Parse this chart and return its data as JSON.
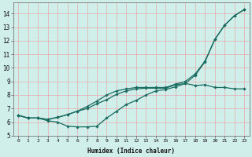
{
  "xlabel": "Humidex (Indice chaleur)",
  "bg_color": "#d0eeea",
  "line_color": "#1a6b60",
  "grid_color": "#e8aaaa",
  "xlim": [
    -0.5,
    23.5
  ],
  "ylim": [
    5.0,
    14.8
  ],
  "xticks": [
    0,
    1,
    2,
    3,
    4,
    5,
    6,
    7,
    8,
    9,
    10,
    11,
    12,
    13,
    14,
    15,
    16,
    17,
    18,
    19,
    20,
    21,
    22,
    23
  ],
  "yticks": [
    5,
    6,
    7,
    8,
    9,
    10,
    11,
    12,
    13,
    14
  ],
  "line1_y": [
    6.5,
    6.3,
    6.3,
    6.1,
    6.0,
    5.7,
    5.65,
    5.65,
    5.7,
    6.3,
    6.8,
    7.3,
    7.6,
    8.0,
    8.3,
    8.4,
    8.6,
    8.85,
    8.7,
    8.75,
    8.55,
    8.55,
    8.45,
    8.45
  ],
  "line2_y": [
    6.5,
    6.3,
    6.3,
    6.2,
    6.35,
    6.55,
    6.8,
    7.0,
    7.35,
    7.65,
    8.05,
    8.3,
    8.45,
    8.5,
    8.5,
    8.5,
    8.75,
    8.85,
    9.45,
    10.45,
    12.1,
    13.15,
    13.85,
    14.3
  ],
  "line3_y": [
    6.5,
    6.3,
    6.3,
    6.2,
    6.35,
    6.55,
    6.8,
    7.15,
    7.55,
    8.0,
    8.3,
    8.45,
    8.55,
    8.55,
    8.55,
    8.55,
    8.8,
    9.0,
    9.55,
    10.5,
    12.1,
    13.15,
    13.85,
    14.3
  ]
}
